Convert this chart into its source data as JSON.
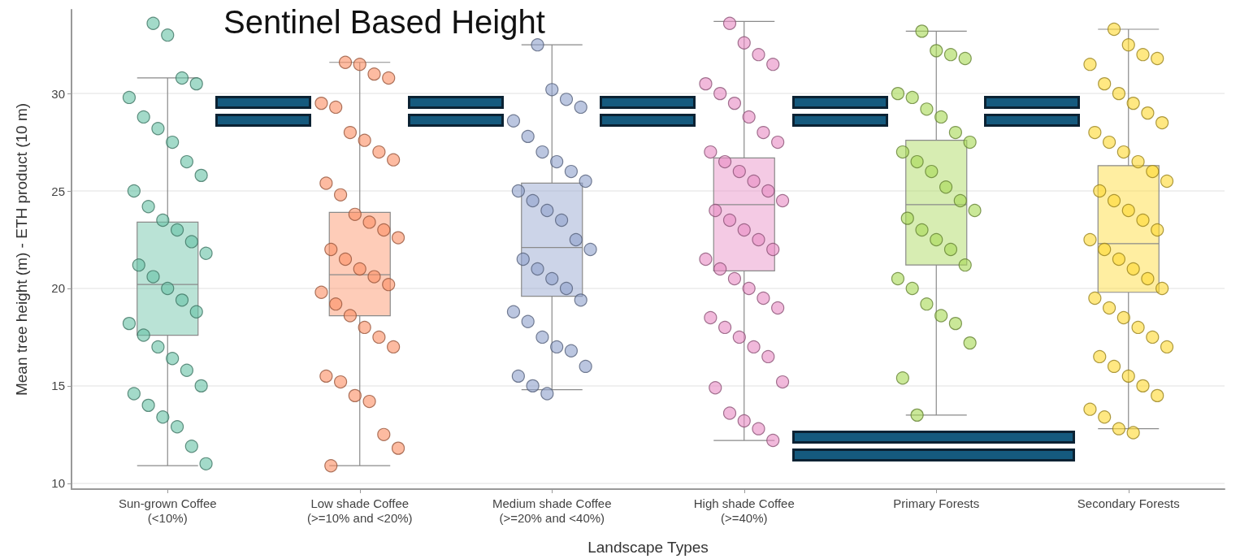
{
  "chart_data": {
    "type": "box",
    "title": "Sentinel Based Height",
    "xlabel": "Landscape Types",
    "ylabel": "Mean tree height (m) - ETH product (10 m)",
    "categories": [
      "Sun-grown Coffee\n(<10%)",
      "Low shade Coffee\n(>=10% and <20%)",
      "Medium shade Coffee\n(>=20% and <40%)",
      "High shade Coffee\n(>=40%)",
      "Primary Forests",
      "Secondary Forests"
    ],
    "boxes": [
      {
        "low": 10.9,
        "q1": 17.6,
        "median": 20.2,
        "q3": 23.4,
        "high": 30.8
      },
      {
        "low": 10.9,
        "q1": 18.6,
        "median": 20.7,
        "q3": 23.9,
        "high": 31.6
      },
      {
        "low": 14.8,
        "q1": 19.6,
        "median": 22.1,
        "q3": 25.4,
        "high": 32.5
      },
      {
        "low": 12.2,
        "q1": 20.9,
        "median": 24.3,
        "q3": 26.7,
        "high": 33.7
      },
      {
        "low": 13.5,
        "q1": 21.2,
        "median": 24.3,
        "q3": 27.6,
        "high": 33.2
      },
      {
        "low": 12.8,
        "q1": 19.8,
        "median": 22.3,
        "q3": 26.3,
        "high": 33.3
      }
    ],
    "colors": [
      "#66c2a5",
      "#fc8d62",
      "#8da0cb",
      "#e78ac3",
      "#a6d854",
      "#ffd92f"
    ],
    "ylim": [
      9.7,
      34.3
    ],
    "yticks": [
      10,
      15,
      20,
      25,
      30
    ],
    "grid": "y",
    "marker": "circle",
    "series": [
      {
        "type": "scatter",
        "color": "#66c2a5",
        "x": [
          "Sun-grown Coffee\n(<10%)",
          "Sun-grown Coffee\n(<10%)",
          "Sun-grown Coffee\n(<10%)",
          "Sun-grown Coffee\n(<10%)",
          "Sun-grown Coffee\n(<10%)",
          "Sun-grown Coffee\n(<10%)",
          "Sun-grown Coffee\n(<10%)",
          "Sun-grown Coffee\n(<10%)",
          "Sun-grown Coffee\n(<10%)",
          "Sun-grown Coffee\n(<10%)",
          "Sun-grown Coffee\n(<10%)",
          "Sun-grown Coffee\n(<10%)",
          "Sun-grown Coffee\n(<10%)",
          "Sun-grown Coffee\n(<10%)",
          "Sun-grown Coffee\n(<10%)",
          "Sun-grown Coffee\n(<10%)",
          "Sun-grown Coffee\n(<10%)",
          "Sun-grown Coffee\n(<10%)",
          "Sun-grown Coffee\n(<10%)",
          "Sun-grown Coffee\n(<10%)",
          "Sun-grown Coffee\n(<10%)",
          "Sun-grown Coffee\n(<10%)",
          "Sun-grown Coffee\n(<10%)",
          "Sun-grown Coffee\n(<10%)",
          "Sun-grown Coffee\n(<10%)",
          "Sun-grown Coffee\n(<10%)",
          "Sun-grown Coffee\n(<10%)",
          "Sun-grown Coffee\n(<10%)",
          "Sun-grown Coffee\n(<10%)",
          "Sun-grown Coffee\n(<10%)",
          "Sun-grown Coffee\n(<10%)",
          "Sun-grown Coffee\n(<10%)",
          "Sun-grown Coffee\n(<10%)"
        ],
        "values": [
          33.6,
          33.0,
          30.8,
          30.5,
          29.8,
          28.8,
          28.2,
          27.5,
          26.5,
          25.8,
          25.0,
          24.2,
          23.5,
          23.0,
          22.4,
          21.8,
          21.2,
          20.6,
          20.0,
          19.4,
          18.8,
          18.2,
          17.6,
          17.0,
          16.4,
          15.8,
          15.0,
          14.6,
          14.0,
          13.4,
          12.9,
          11.9,
          11.0
        ]
      },
      {
        "type": "scatter",
        "color": "#fc8d62",
        "x": [
          "Low shade Coffee\n(>=10% and <20%)",
          "Low shade Coffee\n(>=10% and <20%)",
          "Low shade Coffee\n(>=10% and <20%)",
          "Low shade Coffee\n(>=10% and <20%)",
          "Low shade Coffee\n(>=10% and <20%)",
          "Low shade Coffee\n(>=10% and <20%)",
          "Low shade Coffee\n(>=10% and <20%)",
          "Low shade Coffee\n(>=10% and <20%)",
          "Low shade Coffee\n(>=10% and <20%)",
          "Low shade Coffee\n(>=10% and <20%)",
          "Low shade Coffee\n(>=10% and <20%)",
          "Low shade Coffee\n(>=10% and <20%)",
          "Low shade Coffee\n(>=10% and <20%)",
          "Low shade Coffee\n(>=10% and <20%)",
          "Low shade Coffee\n(>=10% and <20%)",
          "Low shade Coffee\n(>=10% and <20%)",
          "Low shade Coffee\n(>=10% and <20%)",
          "Low shade Coffee\n(>=10% and <20%)",
          "Low shade Coffee\n(>=10% and <20%)",
          "Low shade Coffee\n(>=10% and <20%)",
          "Low shade Coffee\n(>=10% and <20%)",
          "Low shade Coffee\n(>=10% and <20%)",
          "Low shade Coffee\n(>=10% and <20%)",
          "Low shade Coffee\n(>=10% and <20%)",
          "Low shade Coffee\n(>=10% and <20%)",
          "Low shade Coffee\n(>=10% and <20%)",
          "Low shade Coffee\n(>=10% and <20%)",
          "Low shade Coffee\n(>=10% and <20%)",
          "Low shade Coffee\n(>=10% and <20%)",
          "Low shade Coffee\n(>=10% and <20%)",
          "Low shade Coffee\n(>=10% and <20%)",
          "Low shade Coffee\n(>=10% and <20%)",
          "Low shade Coffee\n(>=10% and <20%)",
          "Low shade Coffee\n(>=10% and <20%)"
        ],
        "values": [
          31.6,
          31.5,
          31.0,
          30.8,
          29.5,
          29.3,
          28.0,
          27.6,
          27.0,
          26.6,
          25.4,
          24.8,
          23.8,
          23.4,
          23.0,
          22.6,
          22.0,
          21.5,
          21.0,
          20.6,
          20.2,
          19.8,
          19.2,
          18.6,
          18.0,
          17.5,
          17.0,
          15.5,
          15.2,
          14.5,
          14.2,
          12.5,
          11.8,
          10.9
        ]
      },
      {
        "type": "scatter",
        "color": "#8da0cb",
        "x": [
          "Medium shade Coffee\n(>=20% and <40%)",
          "Medium shade Coffee\n(>=20% and <40%)",
          "Medium shade Coffee\n(>=20% and <40%)",
          "Medium shade Coffee\n(>=20% and <40%)",
          "Medium shade Coffee\n(>=20% and <40%)",
          "Medium shade Coffee\n(>=20% and <40%)",
          "Medium shade Coffee\n(>=20% and <40%)",
          "Medium shade Coffee\n(>=20% and <40%)",
          "Medium shade Coffee\n(>=20% and <40%)",
          "Medium shade Coffee\n(>=20% and <40%)",
          "Medium shade Coffee\n(>=20% and <40%)",
          "Medium shade Coffee\n(>=20% and <40%)",
          "Medium shade Coffee\n(>=20% and <40%)",
          "Medium shade Coffee\n(>=20% and <40%)",
          "Medium shade Coffee\n(>=20% and <40%)",
          "Medium shade Coffee\n(>=20% and <40%)",
          "Medium shade Coffee\n(>=20% and <40%)",
          "Medium shade Coffee\n(>=20% and <40%)",
          "Medium shade Coffee\n(>=20% and <40%)",
          "Medium shade Coffee\n(>=20% and <40%)",
          "Medium shade Coffee\n(>=20% and <40%)",
          "Medium shade Coffee\n(>=20% and <40%)",
          "Medium shade Coffee\n(>=20% and <40%)",
          "Medium shade Coffee\n(>=20% and <40%)",
          "Medium shade Coffee\n(>=20% and <40%)",
          "Medium shade Coffee\n(>=20% and <40%)",
          "Medium shade Coffee\n(>=20% and <40%)",
          "Medium shade Coffee\n(>=20% and <40%)",
          "Medium shade Coffee\n(>=20% and <40%)",
          "Medium shade Coffee\n(>=20% and <40%)"
        ],
        "values": [
          32.5,
          30.2,
          29.7,
          29.3,
          28.6,
          27.8,
          27.0,
          26.5,
          26.0,
          25.5,
          25.0,
          24.5,
          24.0,
          23.5,
          22.5,
          22.0,
          21.5,
          21.0,
          20.5,
          20.0,
          19.4,
          18.8,
          18.3,
          17.5,
          17.0,
          16.8,
          16.0,
          15.5,
          15.0,
          14.6
        ]
      },
      {
        "type": "scatter",
        "color": "#e78ac3",
        "x": [
          "High shade Coffee\n(>=40%)",
          "High shade Coffee\n(>=40%)",
          "High shade Coffee\n(>=40%)",
          "High shade Coffee\n(>=40%)",
          "High shade Coffee\n(>=40%)",
          "High shade Coffee\n(>=40%)",
          "High shade Coffee\n(>=40%)",
          "High shade Coffee\n(>=40%)",
          "High shade Coffee\n(>=40%)",
          "High shade Coffee\n(>=40%)",
          "High shade Coffee\n(>=40%)",
          "High shade Coffee\n(>=40%)",
          "High shade Coffee\n(>=40%)",
          "High shade Coffee\n(>=40%)",
          "High shade Coffee\n(>=40%)",
          "High shade Coffee\n(>=40%)",
          "High shade Coffee\n(>=40%)",
          "High shade Coffee\n(>=40%)",
          "High shade Coffee\n(>=40%)",
          "High shade Coffee\n(>=40%)",
          "High shade Coffee\n(>=40%)",
          "High shade Coffee\n(>=40%)",
          "High shade Coffee\n(>=40%)",
          "High shade Coffee\n(>=40%)",
          "High shade Coffee\n(>=40%)",
          "High shade Coffee\n(>=40%)",
          "High shade Coffee\n(>=40%)",
          "High shade Coffee\n(>=40%)",
          "High shade Coffee\n(>=40%)",
          "High shade Coffee\n(>=40%)",
          "High shade Coffee\n(>=40%)",
          "High shade Coffee\n(>=40%)",
          "High shade Coffee\n(>=40%)",
          "High shade Coffee\n(>=40%)",
          "High shade Coffee\n(>=40%)",
          "High shade Coffee\n(>=40%)",
          "High shade Coffee\n(>=40%)",
          "High shade Coffee\n(>=40%)"
        ],
        "values": [
          33.6,
          32.6,
          32.0,
          31.5,
          30.5,
          30.0,
          29.5,
          28.8,
          28.0,
          27.5,
          27.0,
          26.5,
          26.0,
          25.5,
          25.0,
          24.5,
          24.0,
          23.5,
          23.0,
          22.5,
          22.0,
          21.5,
          21.0,
          20.5,
          20.0,
          19.5,
          19.0,
          18.5,
          18.0,
          17.5,
          17.0,
          16.5,
          15.2,
          14.9,
          13.6,
          13.2,
          12.8,
          12.2
        ]
      },
      {
        "type": "scatter",
        "color": "#a6d854",
        "x": [
          "Primary Forests",
          "Primary Forests",
          "Primary Forests",
          "Primary Forests",
          "Primary Forests",
          "Primary Forests",
          "Primary Forests",
          "Primary Forests",
          "Primary Forests",
          "Primary Forests",
          "Primary Forests",
          "Primary Forests",
          "Primary Forests",
          "Primary Forests",
          "Primary Forests",
          "Primary Forests",
          "Primary Forests",
          "Primary Forests",
          "Primary Forests",
          "Primary Forests",
          "Primary Forests",
          "Primary Forests",
          "Primary Forests",
          "Primary Forests",
          "Primary Forests",
          "Primary Forests",
          "Primary Forests",
          "Primary Forests",
          "Primary Forests"
        ],
        "values": [
          33.2,
          32.2,
          32.0,
          31.8,
          30.0,
          29.8,
          29.2,
          28.8,
          28.0,
          27.5,
          27.0,
          26.5,
          26.0,
          25.2,
          24.5,
          24.0,
          23.6,
          23.0,
          22.5,
          22.0,
          21.2,
          20.5,
          20.0,
          19.2,
          18.6,
          18.2,
          17.2,
          15.4,
          13.5
        ]
      },
      {
        "type": "scatter",
        "color": "#ffd92f",
        "x": [
          "Secondary Forests",
          "Secondary Forests",
          "Secondary Forests",
          "Secondary Forests",
          "Secondary Forests",
          "Secondary Forests",
          "Secondary Forests",
          "Secondary Forests",
          "Secondary Forests",
          "Secondary Forests",
          "Secondary Forests",
          "Secondary Forests",
          "Secondary Forests",
          "Secondary Forests",
          "Secondary Forests",
          "Secondary Forests",
          "Secondary Forests",
          "Secondary Forests",
          "Secondary Forests",
          "Secondary Forests",
          "Secondary Forests",
          "Secondary Forests",
          "Secondary Forests",
          "Secondary Forests",
          "Secondary Forests",
          "Secondary Forests",
          "Secondary Forests",
          "Secondary Forests",
          "Secondary Forests",
          "Secondary Forests",
          "Secondary Forests",
          "Secondary Forests",
          "Secondary Forests",
          "Secondary Forests",
          "Secondary Forests",
          "Secondary Forests",
          "Secondary Forests",
          "Secondary Forests",
          "Secondary Forests",
          "Secondary Forests",
          "Secondary Forests",
          "Secondary Forests"
        ],
        "values": [
          33.3,
          32.5,
          32.0,
          31.8,
          31.5,
          30.5,
          30.0,
          29.5,
          29.0,
          28.5,
          28.0,
          27.5,
          27.0,
          26.5,
          26.0,
          25.5,
          25.0,
          24.5,
          24.0,
          23.5,
          23.0,
          22.5,
          22.0,
          21.5,
          21.0,
          20.5,
          20.0,
          19.5,
          19.0,
          18.5,
          18.0,
          17.5,
          17.0,
          16.5,
          16.0,
          15.5,
          15.0,
          14.5,
          13.8,
          13.4,
          12.8,
          12.6
        ]
      }
    ]
  }
}
